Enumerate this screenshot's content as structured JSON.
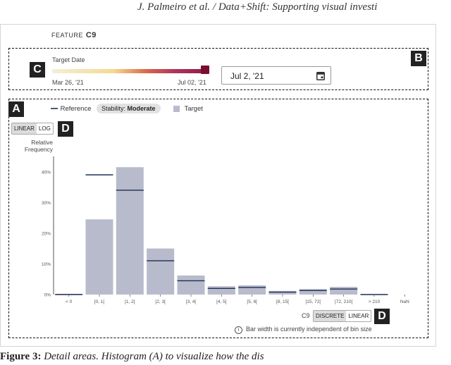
{
  "header": {
    "running_title": "J. Palmeiro et al. / Data+Shift: Supporting visual investi"
  },
  "feature": {
    "label": "FEATURE",
    "name": "C9"
  },
  "date_panel": {
    "label": "Target Date",
    "start": "Mar 26, '21",
    "end": "Jul 02, '21",
    "value": "Jul 2, '21",
    "selected_fraction": 1.0
  },
  "tags": {
    "a": "A",
    "b": "B",
    "c": "C",
    "d1": "D",
    "d2": "D"
  },
  "legend": {
    "reference": "Reference",
    "stability_prefix": "Stability:",
    "stability_value": "Moderate",
    "target": "Target"
  },
  "scale_toggle": {
    "linear": "LINEAR",
    "log": "LOG",
    "selected": "LINEAR"
  },
  "bin_controls": {
    "feature": "C9",
    "discrete": "DISCRETE",
    "linear": "LINEAR",
    "selected": "DISCRETE"
  },
  "info_note": "Bar width is currently independent of bin size",
  "caption": {
    "label": "Figure 3:",
    "text": "Detail areas. Histogram (A) to visualize how the dis"
  },
  "colors": {
    "bar": "#b8bbcb",
    "reference": "#1f2f55",
    "accent": "#7a0c2e"
  },
  "chart_data": {
    "type": "bar",
    "ylabel": "Relative Frequency",
    "ylim": [
      0,
      45
    ],
    "yticks": [
      "0%",
      "10%",
      "20%",
      "30%",
      "40%"
    ],
    "categories": [
      "< 0",
      "[0, 1[",
      "[1, 2[",
      "[2, 3[",
      "[3, 4[",
      "[4, 5[",
      "[5, 8[",
      "[8, 15[",
      "[15, 72[",
      "[72, 210[",
      "> 210",
      "NaN"
    ],
    "series": [
      {
        "name": "Target",
        "values": [
          0.2,
          24.5,
          41.5,
          15,
          6.2,
          2.7,
          3,
          1.2,
          1.8,
          2.5,
          0,
          0
        ]
      },
      {
        "name": "Reference",
        "values": [
          0,
          39,
          34,
          11,
          4.5,
          2,
          2.3,
          0.8,
          1.3,
          1.8,
          0,
          0
        ]
      }
    ]
  }
}
